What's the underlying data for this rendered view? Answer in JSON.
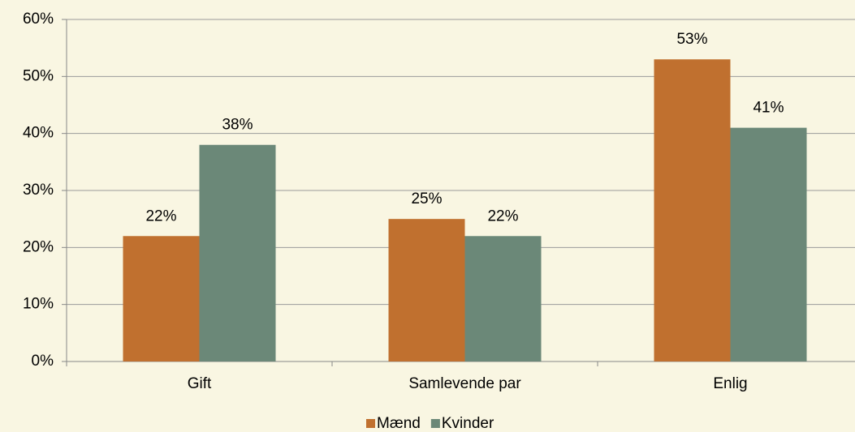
{
  "chart_data": {
    "type": "bar",
    "categories": [
      "Gift",
      "Samlevende par",
      "Enlig"
    ],
    "series": [
      {
        "name": "Mænd",
        "color": "#c0702f",
        "values": [
          22,
          25,
          53
        ],
        "value_labels": [
          "22%",
          "25%",
          "53%"
        ]
      },
      {
        "name": "Kvinder",
        "color": "#6b8878",
        "values": [
          38,
          22,
          41
        ],
        "value_labels": [
          "38%",
          "22%",
          "41%"
        ]
      }
    ],
    "ylim": [
      0,
      60
    ],
    "yticks": [
      {
        "value": 0,
        "label": "0%"
      },
      {
        "value": 10,
        "label": "10%"
      },
      {
        "value": 20,
        "label": "20%"
      },
      {
        "value": 30,
        "label": "30%"
      },
      {
        "value": 40,
        "label": "40%"
      },
      {
        "value": 50,
        "label": "50%"
      },
      {
        "value": 60,
        "label": "60%"
      }
    ],
    "grid": true,
    "legend": "bottom"
  }
}
